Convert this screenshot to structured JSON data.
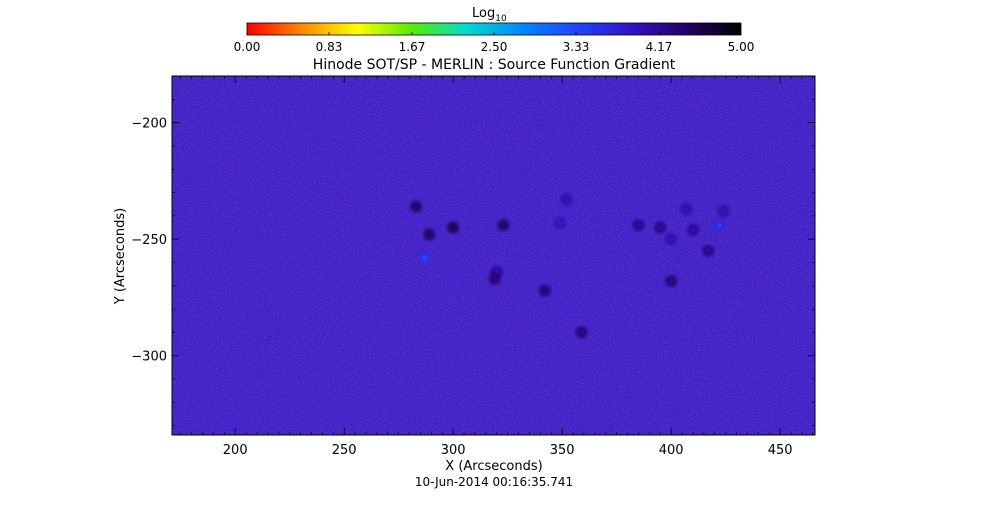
{
  "colorbar": {
    "label_main": "Log",
    "label_sub": "10",
    "ticks": [
      "0.00",
      "0.83",
      "1.67",
      "2.50",
      "3.33",
      "4.17",
      "5.00"
    ],
    "range": [
      0,
      5
    ],
    "colors": [
      "#ff0000",
      "#ff8800",
      "#ffff00",
      "#55ee00",
      "#00ddcc",
      "#0088ff",
      "#2244ff",
      "#3311cc",
      "#220066",
      "#000000"
    ]
  },
  "chart_data": {
    "type": "heatmap",
    "title": "Hinode SOT/SP - MERLIN : Source Function Gradient",
    "xlabel": "X (Arcseconds)",
    "ylabel": "Y (Arcseconds)",
    "xlim": [
      171,
      466
    ],
    "ylim": [
      -334,
      -180
    ],
    "xticks": [
      200,
      250,
      300,
      350,
      400,
      450
    ],
    "yticks": [
      -200,
      -250,
      -300
    ],
    "ytick_labels": [
      "−200",
      "−250",
      "−300"
    ],
    "value_range": [
      0,
      5
    ],
    "background_color": "#3a1fc8",
    "bright_features": [
      {
        "x": 283,
        "y": -236,
        "level": 4.3
      },
      {
        "x": 289,
        "y": -248,
        "level": 4.3
      },
      {
        "x": 300,
        "y": -245,
        "level": 4.4
      },
      {
        "x": 287,
        "y": -258,
        "level": 3.3
      },
      {
        "x": 323,
        "y": -244,
        "level": 4.3
      },
      {
        "x": 320,
        "y": -264,
        "level": 4.0
      },
      {
        "x": 319,
        "y": -267,
        "level": 4.2
      },
      {
        "x": 352,
        "y": -233,
        "level": 3.9
      },
      {
        "x": 349,
        "y": -243,
        "level": 3.8
      },
      {
        "x": 342,
        "y": -272,
        "level": 4.2
      },
      {
        "x": 385,
        "y": -244,
        "level": 4.1
      },
      {
        "x": 395,
        "y": -245,
        "level": 4.1
      },
      {
        "x": 400,
        "y": -250,
        "level": 3.9
      },
      {
        "x": 407,
        "y": -237,
        "level": 3.9
      },
      {
        "x": 410,
        "y": -246,
        "level": 4.0
      },
      {
        "x": 422,
        "y": -244,
        "level": 3.4
      },
      {
        "x": 424,
        "y": -238,
        "level": 3.9
      },
      {
        "x": 417,
        "y": -255,
        "level": 4.1
      },
      {
        "x": 400,
        "y": -268,
        "level": 4.2
      },
      {
        "x": 359,
        "y": -290,
        "level": 4.2
      }
    ]
  },
  "timestamp": "10-Jun-2014 00:16:35.741"
}
